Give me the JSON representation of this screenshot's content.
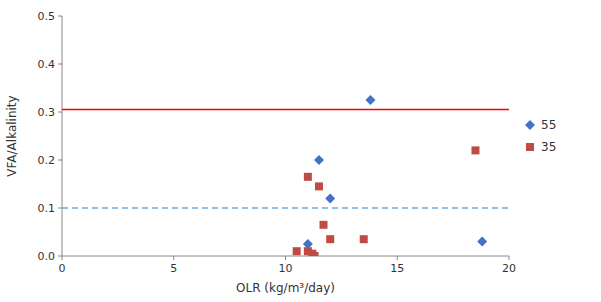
{
  "chart_data": {
    "type": "scatter",
    "x_label": "OLR (kg/m³/day)",
    "y_label": "VFA/Alkalinity",
    "series": [
      {
        "name": "55",
        "color": "#4472C4",
        "marker": "diamond",
        "x": [
          11.0,
          11.5,
          12.0,
          13.8,
          18.8
        ],
        "values": [
          0.025,
          0.2,
          0.12,
          0.325,
          0.03
        ]
      },
      {
        "name": "35",
        "color": "#BE4B48",
        "marker": "square",
        "x": [
          10.5,
          11.0,
          11.0,
          11.2,
          11.3,
          11.5,
          11.7,
          12.0,
          13.5,
          18.5
        ],
        "values": [
          0.01,
          0.165,
          0.01,
          0.005,
          0.0,
          0.145,
          0.065,
          0.035,
          0.035,
          0.22
        ]
      }
    ],
    "reference_lines": [
      {
        "y": 0.305,
        "color": "#FF0000",
        "line_style": "solid"
      },
      {
        "y": 0.1,
        "color": "#70ADDE",
        "line_style": "dashed"
      }
    ],
    "xlim": [
      0,
      20
    ],
    "ylim": [
      0,
      0.5
    ],
    "xticks": [
      0,
      5,
      10,
      15,
      20
    ],
    "yticks": [
      {
        "value": 0,
        "label": "0.0"
      },
      0.1,
      0.2,
      0.3,
      0.4,
      0.5
    ],
    "grid": false,
    "legend": "right"
  }
}
